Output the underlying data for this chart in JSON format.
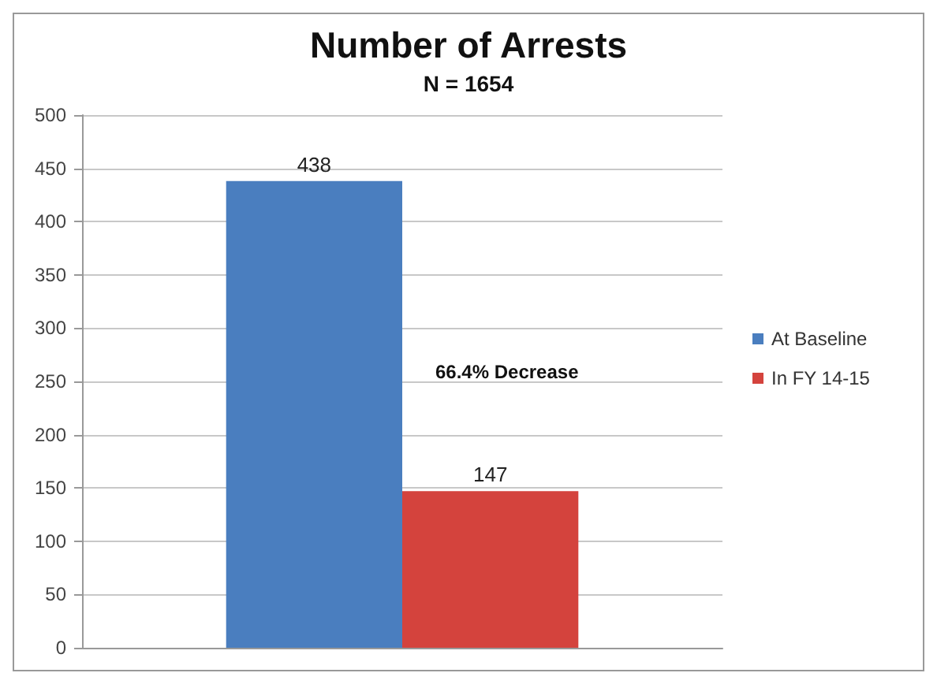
{
  "chart_data": {
    "type": "bar",
    "title": "Number of Arrests",
    "subtitle": "N = 1654",
    "categories": [
      null
    ],
    "series": [
      {
        "name": "At Baseline",
        "color": "#4a7ebf",
        "values": [
          438
        ]
      },
      {
        "name": "In FY 14-15",
        "color": "#d4433d",
        "values": [
          147
        ]
      }
    ],
    "ylim": [
      0,
      500
    ],
    "yticks": [
      0,
      50,
      100,
      150,
      200,
      250,
      300,
      350,
      400,
      450,
      500
    ],
    "grid": "y",
    "legend": "right",
    "data_labels": true,
    "annotations": [
      "66.4% Decrease"
    ]
  }
}
